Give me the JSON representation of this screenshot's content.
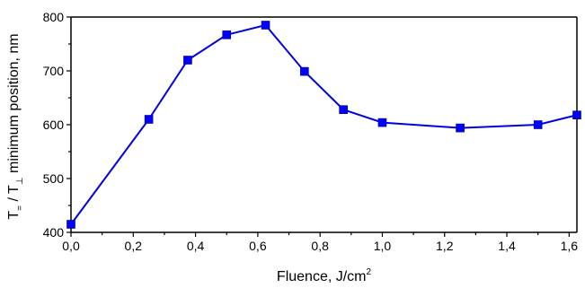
{
  "chart_data": {
    "type": "line",
    "title": "",
    "xlabel": "Fluence, J/cm",
    "xlabel_sup": "2",
    "ylabel_parts": [
      "T",
      "=",
      " / T",
      "⊥",
      " minimum position, nm"
    ],
    "xlim": [
      0,
      1.625
    ],
    "ylim": [
      400,
      800
    ],
    "x_ticks": [
      0,
      0.2,
      0.4,
      0.6,
      0.8,
      1.0,
      1.2,
      1.4,
      1.6
    ],
    "x_tick_labels": [
      "0,0",
      "0,2",
      "0,4",
      "0,6",
      "0,8",
      "1,0",
      "1,2",
      "1,4",
      "1,6"
    ],
    "y_ticks": [
      400,
      500,
      600,
      700,
      800
    ],
    "y_tick_labels": [
      "400",
      "500",
      "600",
      "700",
      "800"
    ],
    "grid": false,
    "series": [
      {
        "color": "#0000ff",
        "marker": "square",
        "x": [
          0.0,
          0.25,
          0.375,
          0.5,
          0.625,
          0.75,
          0.875,
          1.0,
          1.25,
          1.5,
          1.625
        ],
        "y": [
          415,
          610,
          720,
          767,
          785,
          699,
          628,
          604,
          594,
          600,
          618
        ]
      }
    ]
  }
}
